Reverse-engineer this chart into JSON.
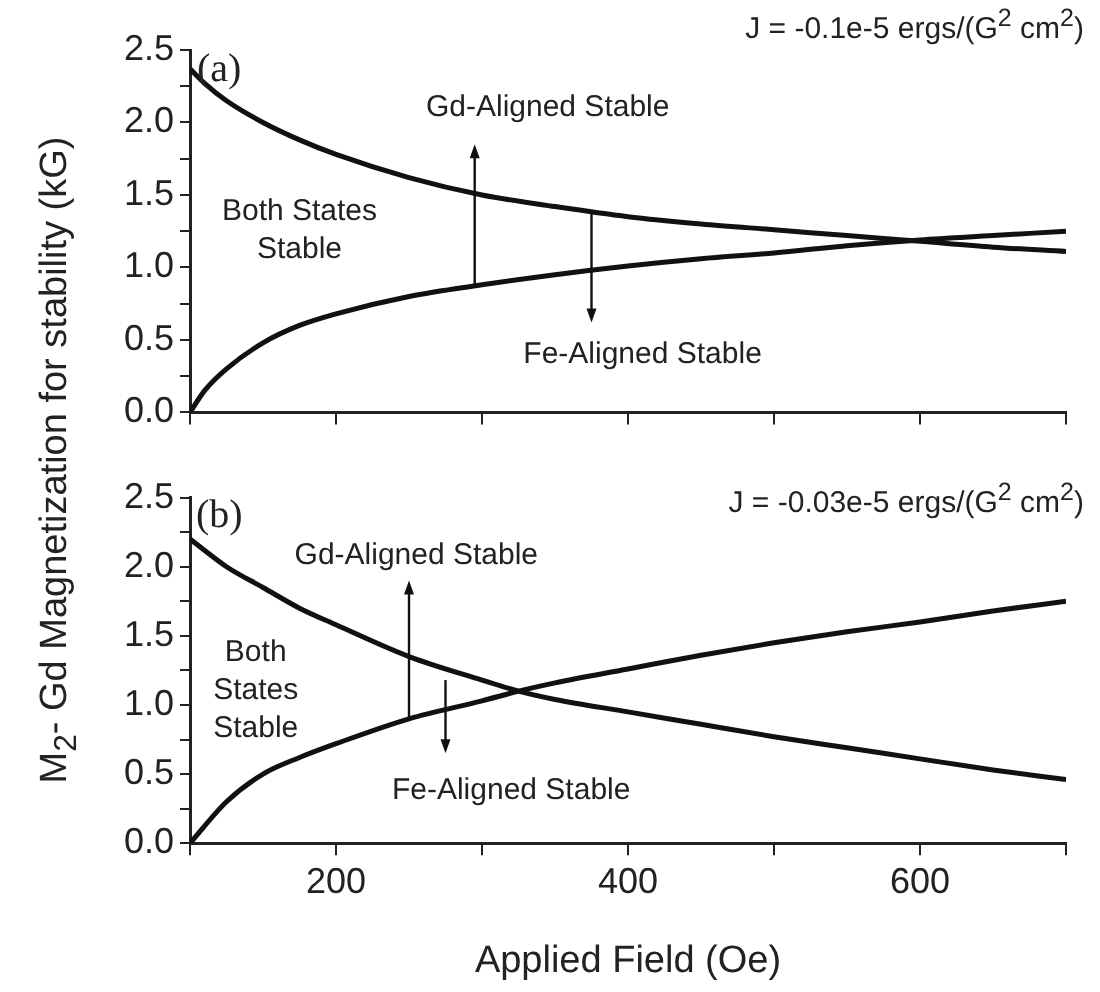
{
  "chart_data": [
    {
      "type": "line",
      "title": "J = -0.1e-5 ergs/(G$^{2}$ cm$^{2}$)",
      "ylabel": "M$_{2}$- Gd Magnetization for stability (kG)",
      "series": [
        {
          "color": "#111111",
          "x": [
            100,
            110,
            125,
            150,
            175,
            200,
            250,
            300,
            350,
            400,
            450,
            500,
            550,
            600,
            650,
            700
          ],
          "values": [
            2.37,
            2.27,
            2.15,
            2.0,
            1.88,
            1.78,
            1.62,
            1.5,
            1.42,
            1.35,
            1.3,
            1.26,
            1.22,
            1.18,
            1.14,
            1.11
          ]
        },
        {
          "color": "#111111",
          "x": [
            100,
            110,
            125,
            150,
            175,
            200,
            250,
            300,
            350,
            400,
            450,
            500,
            550,
            600,
            650,
            700
          ],
          "values": [
            0,
            0.15,
            0.3,
            0.48,
            0.6,
            0.68,
            0.8,
            0.88,
            0.95,
            1.01,
            1.06,
            1.1,
            1.15,
            1.19,
            1.22,
            1.25
          ]
        }
      ],
      "annotations": [
        "(a)",
        "Gd-Aligned Stable",
        "Both States\nStable",
        "Fe-Aligned Stable"
      ],
      "xlim": [
        100,
        700
      ],
      "xticks": [
        {
          "value": 100,
          "label": null
        },
        {
          "value": 200,
          "label": null
        },
        {
          "value": 300,
          "label": null
        },
        {
          "value": 400,
          "label": null
        },
        {
          "value": 500,
          "label": null
        },
        {
          "value": 600,
          "label": null
        },
        {
          "value": 700,
          "label": null
        }
      ],
      "ylim": [
        0,
        2.5
      ],
      "yticks": [
        {
          "value": 0,
          "label": "0.0"
        },
        {
          "value": 0.25,
          "label": null
        },
        {
          "value": 0.5,
          "label": "0.5"
        },
        {
          "value": 0.75,
          "label": null
        },
        {
          "value": 1,
          "label": "1.0"
        },
        {
          "value": 1.25,
          "label": null
        },
        {
          "value": 1.5,
          "label": "1.5"
        },
        {
          "value": 1.75,
          "label": null
        },
        {
          "value": 2,
          "label": "2.0"
        },
        {
          "value": 2.25,
          "label": null
        },
        {
          "value": 2.5,
          "label": "2.5"
        }
      ],
      "tick_labels": "y",
      "grid": false,
      "legend": false,
      "marker": "none",
      "line_style": "solid"
    },
    {
      "type": "line",
      "title": "J = -0.03e-5 ergs/(G$^{2}$ cm$^{2}$)",
      "xlabel": "Applied Field (Oe)",
      "series": [
        {
          "color": "#111111",
          "x": [
            100,
            125,
            150,
            175,
            200,
            250,
            300,
            325,
            350,
            400,
            450,
            500,
            550,
            600,
            650,
            700
          ],
          "values": [
            2.2,
            2.0,
            1.85,
            1.7,
            1.58,
            1.35,
            1.18,
            1.1,
            1.04,
            0.95,
            0.86,
            0.77,
            0.69,
            0.61,
            0.53,
            0.46
          ]
        },
        {
          "color": "#111111",
          "x": [
            100,
            125,
            150,
            175,
            200,
            250,
            300,
            325,
            350,
            400,
            450,
            500,
            550,
            600,
            650,
            700
          ],
          "values": [
            0,
            0.3,
            0.5,
            0.62,
            0.72,
            0.9,
            1.03,
            1.1,
            1.16,
            1.26,
            1.36,
            1.45,
            1.53,
            1.6,
            1.68,
            1.75
          ]
        }
      ],
      "annotations": [
        "(b)",
        "Gd-Aligned Stable",
        "Both\nStates\nStable",
        "Fe-Aligned Stable"
      ],
      "xlim": [
        100,
        700
      ],
      "xticks": [
        {
          "value": 100,
          "label": null
        },
        {
          "value": 200,
          "label": "200"
        },
        {
          "value": 300,
          "label": null
        },
        {
          "value": 400,
          "label": "400"
        },
        {
          "value": 500,
          "label": null
        },
        {
          "value": 600,
          "label": "600"
        },
        {
          "value": 700,
          "label": null
        }
      ],
      "ylim": [
        0,
        2.5
      ],
      "yticks": [
        {
          "value": 0,
          "label": "0.0"
        },
        {
          "value": 0.25,
          "label": null
        },
        {
          "value": 0.5,
          "label": "0.5"
        },
        {
          "value": 0.75,
          "label": null
        },
        {
          "value": 1,
          "label": "1.0"
        },
        {
          "value": 1.25,
          "label": null
        },
        {
          "value": 1.5,
          "label": "1.5"
        },
        {
          "value": 1.75,
          "label": null
        },
        {
          "value": 2,
          "label": "2.0"
        },
        {
          "value": 2.25,
          "label": null
        },
        {
          "value": 2.5,
          "label": "2.5"
        }
      ],
      "grid": false,
      "legend": false,
      "marker": "none",
      "line_style": "solid"
    }
  ]
}
